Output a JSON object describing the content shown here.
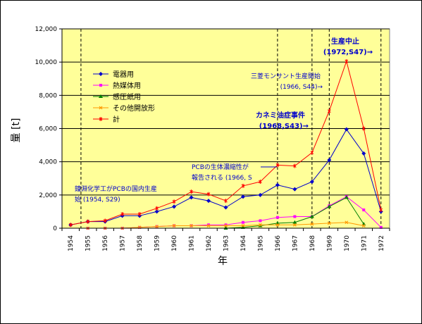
{
  "chart_data": {
    "type": "line",
    "xlabel": "年",
    "ylabel": "量 [t]",
    "ylim": [
      0,
      12000
    ],
    "yticks": [
      "0",
      "2,000",
      "4,000",
      "6,000",
      "8,000",
      "10,000",
      "12,000"
    ],
    "categories": [
      "1954",
      "1955",
      "1956",
      "1957",
      "1958",
      "1959",
      "1960",
      "1961",
      "1962",
      "1963",
      "1964",
      "1965",
      "1966",
      "1967",
      "1968",
      "1969",
      "1970",
      "1971",
      "1972"
    ],
    "grid": true,
    "legend_position": "upper-left",
    "series": [
      {
        "name": "電器用",
        "color": "#0000cc",
        "marker": "diamond",
        "values": [
          200,
          400,
          400,
          750,
          750,
          1000,
          1300,
          1850,
          1650,
          1250,
          1900,
          2000,
          2600,
          2350,
          2800,
          4100,
          5950,
          4500,
          1000
        ]
      },
      {
        "name": "熱媒体用",
        "color": "#ff00ff",
        "marker": "square",
        "values": [
          null,
          0,
          0,
          0,
          50,
          100,
          150,
          150,
          200,
          200,
          350,
          450,
          650,
          700,
          700,
          1350,
          1900,
          1100,
          50
        ]
      },
      {
        "name": "感圧紙用",
        "color": "#008000",
        "marker": "triangle",
        "values": [
          null,
          null,
          null,
          null,
          null,
          null,
          null,
          null,
          null,
          0,
          50,
          150,
          300,
          350,
          700,
          1300,
          1850,
          250,
          null
        ]
      },
      {
        "name": "その他開放形",
        "color": "#ff9900",
        "marker": "x",
        "values": [
          null,
          0,
          0,
          0,
          50,
          100,
          150,
          150,
          150,
          150,
          150,
          200,
          200,
          200,
          250,
          300,
          350,
          150,
          null
        ]
      },
      {
        "name": "計",
        "color": "#ff0000",
        "marker": "star",
        "values": [
          200,
          400,
          450,
          850,
          850,
          1200,
          1600,
          2200,
          2050,
          1650,
          2550,
          2800,
          3800,
          3750,
          4550,
          7050,
          10050,
          6000,
          1100
        ]
      }
    ],
    "vlines": [
      "1954.6",
      "1966.0",
      "1968.0",
      "1969.0",
      "1972.0"
    ],
    "annotations": {
      "a1954": {
        "line1": "鐘淵化学工がPCBの国内生産",
        "line2": "始 (1954, S29)",
        "color": "#0000cc"
      },
      "a1966": {
        "line1": "PCBの生体濃縮性が",
        "line2": "報告される (1966, S",
        "color": "#0000cc"
      },
      "a1966b": {
        "line1": "三菱モンサント生産開始",
        "line2": "(1966, S44)→",
        "color": "#0000cc"
      },
      "a1968": {
        "line1": "カネミ油症事件",
        "line2": "(1968,S43)→",
        "color": "#0000cc"
      },
      "a1972": {
        "line1": "生産中止",
        "line2": "(1972,S47)→",
        "color": "#0000cc"
      }
    }
  }
}
